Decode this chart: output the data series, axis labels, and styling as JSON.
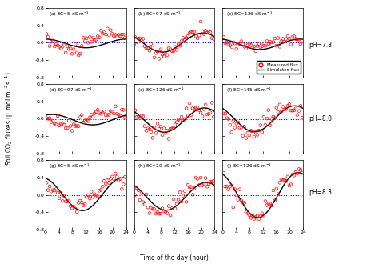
{
  "labels": [
    "(a) EC=5 dS m$^{-1}$",
    "(b) EC=97 dS m$^{-1}$",
    "(c) EC=126 dS m$^{-1}$",
    "(d) EC=97 dS m$^{-1}$",
    "(e) EC=126 dS m$^{-1}$",
    "(f) EC=145 dS m$^{-1}$",
    "(g) EC=5 dS m$^{-1}$",
    "(h) EC=20 dS m$^{-1}$",
    "(i) EC=126 dS m$^{-1}$"
  ],
  "pH_labels": [
    "pH=7.8",
    "pH=8.0",
    "pH=8.3"
  ],
  "sim_config": [
    {
      "s_base": -0.02,
      "s_amp": 0.1,
      "s_phase": 18.0
    },
    {
      "s_base": 0.0,
      "s_amp": 0.22,
      "s_phase": 14.5
    },
    {
      "s_base": -0.04,
      "s_amp": 0.12,
      "s_phase": 17.0
    },
    {
      "s_base": -0.02,
      "s_amp": 0.12,
      "s_phase": 20.0
    },
    {
      "s_base": -0.03,
      "s_amp": 0.28,
      "s_phase": 15.0
    },
    {
      "s_base": 0.0,
      "s_amp": 0.3,
      "s_phase": 15.5
    },
    {
      "s_base": 0.02,
      "s_amp": 0.38,
      "s_phase": 17.0
    },
    {
      "s_base": -0.03,
      "s_amp": 0.32,
      "s_phase": 15.5
    },
    {
      "s_base": 0.0,
      "s_amp": 0.52,
      "s_phase": 16.5
    }
  ],
  "meas_config": [
    {
      "m_base": 0.03,
      "m_amp": 0.2,
      "m_phase": 13.5,
      "m_noise": 0.08
    },
    {
      "m_base": 0.0,
      "m_amp": 0.25,
      "m_phase": 14.0,
      "m_noise": 0.07
    },
    {
      "m_base": -0.02,
      "m_amp": 0.1,
      "m_phase": 15.0,
      "m_noise": 0.06
    },
    {
      "m_base": 0.02,
      "m_amp": 0.16,
      "m_phase": 13.0,
      "m_noise": 0.08
    },
    {
      "m_base": -0.03,
      "m_amp": 0.32,
      "m_phase": 14.0,
      "m_noise": 0.09
    },
    {
      "m_base": 0.0,
      "m_amp": 0.28,
      "m_phase": 14.0,
      "m_noise": 0.1
    },
    {
      "m_base": 0.05,
      "m_amp": 0.3,
      "m_phase": 15.0,
      "m_noise": 0.08
    },
    {
      "m_base": -0.04,
      "m_amp": 0.35,
      "m_phase": 14.5,
      "m_noise": 0.09
    },
    {
      "m_base": 0.0,
      "m_amp": 0.48,
      "m_phase": 15.5,
      "m_noise": 0.11
    }
  ],
  "ylim": [
    -0.8,
    0.8
  ],
  "yticks": [
    -0.8,
    -0.4,
    0.0,
    0.4,
    0.8
  ],
  "xticks": [
    0,
    4,
    8,
    12,
    16,
    20,
    24
  ],
  "xlim": [
    0,
    24
  ],
  "xlabel": "Time of the day (hour)",
  "ylabel": "Soil CO$_2$ fluxes (μ mol m$^{-2}$s$^{-1}$)"
}
